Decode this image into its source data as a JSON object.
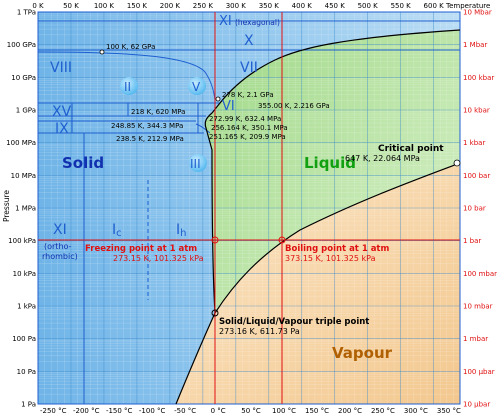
{
  "top_axis": {
    "ticks": [
      "0 K",
      "50 K",
      "100 K",
      "150 K",
      "200 K",
      "250 K",
      "300 K",
      "350 K",
      "400 K",
      "450 K",
      "500 K",
      "550 K",
      "600 K"
    ],
    "title": "Temperature"
  },
  "bottom_axis": {
    "ticks": [
      "-250 °C",
      "-200 °C",
      "-150 °C",
      "-100 °C",
      "-50 °C",
      "0 °C",
      "50 °C",
      "100 °C",
      "150 °C",
      "200 °C",
      "250 °C",
      "300 °C",
      "350 °C"
    ]
  },
  "left_axis": {
    "ticks": [
      "1 TPa",
      "100 GPa",
      "10 GPa",
      "1 GPa",
      "100 MPa",
      "10 MPa",
      "1 MPa",
      "100 kPa",
      "10 kPa",
      "1 kPa",
      "100 Pa",
      "10 Pa",
      "1 Pa"
    ],
    "title": "Pressure"
  },
  "right_axis": {
    "ticks": [
      "10 Mbar",
      "1 Mbar",
      "100 kbar",
      "10 kbar",
      "1 kbar",
      "100 bar",
      "10 bar",
      "1 bar",
      "100 mbar",
      "10 mbar",
      "1 mbar",
      "100 µbar",
      "10 µbar"
    ]
  },
  "phases": {
    "solid": "Solid",
    "liquid": "Liquid",
    "vapour": "Vapour"
  },
  "ice_phases": {
    "xi_hex": "XI (hexagonal)",
    "x": "X",
    "viii": "VIII",
    "vii": "VII",
    "ii": "II",
    "v": "V",
    "vi": "VI",
    "xv": "XV",
    "ix": "IX",
    "iii": "III",
    "xi": "XI",
    "ortho": "(ortho-",
    "rhombic": "rhombic)",
    "ic": "I",
    "ic_sub": "c",
    "ih": "I",
    "ih_sub": "h"
  },
  "point_labels": {
    "p100k": "100 K, 62 GPa",
    "p278k": "278 K, 2.1 GPa",
    "p355k": "355.00 K, 2.216 GPa",
    "p218k": "218 K, 620 MPa",
    "p272k": "272.99 K, 632.4 MPa",
    "p248k": "248.85 K, 344.3 MPa",
    "p256k": "256.164 K, 350.1 MPa",
    "p238k": "238.5 K, 212.9 MPa",
    "p251k": "251.165 K, 209.9 MPa"
  },
  "critical_point": {
    "title": "Critical point",
    "value": "647 K, 22.064 MPa"
  },
  "freezing_point": {
    "title": "Freezing point at 1 atm",
    "value": "273.15 K, 101.325 kPa"
  },
  "boiling_point": {
    "title": "Boiling point at 1 atm",
    "value": "373.15 K, 101.325 kPa"
  },
  "triple_point": {
    "title": "Solid/Liquid/Vapour triple point",
    "value": "273.16 K, 611.73 Pa"
  },
  "colors": {
    "solid_fill": "#9fcdf0",
    "liquid_fill": "#b4e29c",
    "vapour_fill": "#f8d9ad",
    "grid": "#7fb8de",
    "boundary": "#000000",
    "ice_line": "#1f5fd0",
    "annotation_red": "#e01010",
    "phase_solid_text": "#1030b0",
    "phase_liquid_text": "#10a010",
    "phase_vapour_text": "#b06000"
  }
}
